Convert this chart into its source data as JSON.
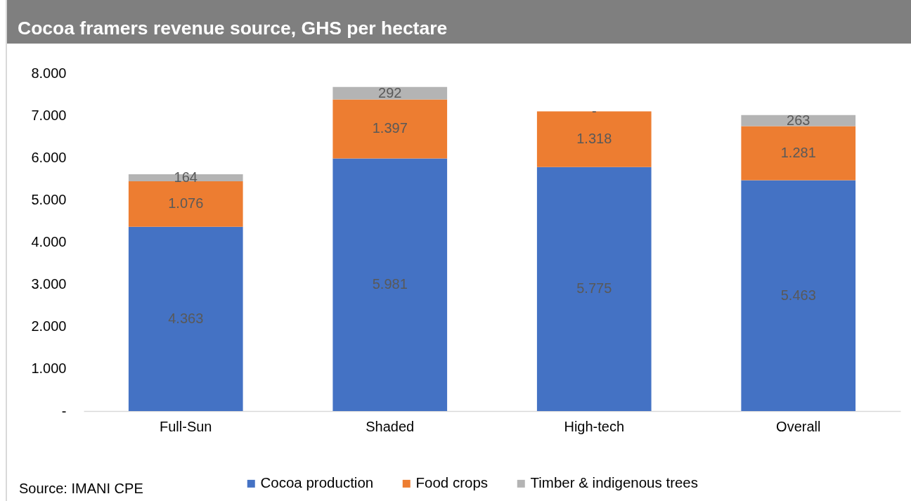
{
  "chart_data": {
    "type": "bar",
    "title": "Cocoa framers revenue source, GHS per hectare",
    "annotations": [
      "Source: IMANI CPE"
    ],
    "categories": [
      "Full-Sun",
      "Shaded",
      "High-tech",
      "Overall"
    ],
    "stacked": true,
    "series": [
      {
        "name": "Cocoa production",
        "color": "#4472c4",
        "values": [
          4363,
          5981,
          5775,
          5463
        ],
        "value_labels": [
          "4.363",
          "5.981",
          "5.775",
          "5.463"
        ]
      },
      {
        "name": "Food crops",
        "color": "#ed7d31",
        "values": [
          1076,
          1397,
          1318,
          1281
        ],
        "value_labels": [
          "1.076",
          "1.397",
          "1.318",
          "1.281"
        ]
      },
      {
        "name": "Timber & indigenous trees",
        "color": "#b4b4b4",
        "values": [
          164,
          292,
          0,
          263
        ],
        "value_labels": [
          "164",
          "292",
          "-",
          "263"
        ]
      }
    ],
    "ylim": [
      0,
      8000
    ],
    "yticks": [
      {
        "value": 0,
        "label": "-"
      },
      {
        "value": 1000,
        "label": "1.000"
      },
      {
        "value": 2000,
        "label": "2.000"
      },
      {
        "value": 3000,
        "label": "3.000"
      },
      {
        "value": 4000,
        "label": "4.000"
      },
      {
        "value": 5000,
        "label": "5.000"
      },
      {
        "value": 6000,
        "label": "6.000"
      },
      {
        "value": 7000,
        "label": "7.000"
      },
      {
        "value": 8000,
        "label": "8.000"
      }
    ],
    "legend": "bottom"
  }
}
